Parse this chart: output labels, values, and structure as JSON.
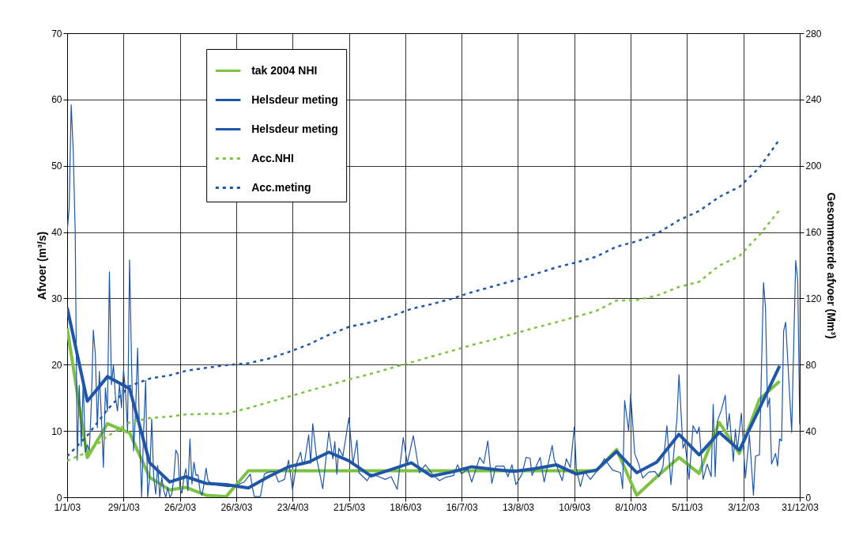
{
  "chart_data": {
    "type": "line",
    "xlabel": null,
    "ylabel": "Afvoer (m³/s)",
    "y2label": "Gesommeerde afvoer (Mm³)",
    "x": [
      "2003-01-01",
      "2003-01-11",
      "2003-01-21",
      "2003-02-01",
      "2003-02-11",
      "2003-02-21",
      "2003-03-01",
      "2003-03-11",
      "2003-03-21",
      "2003-04-01",
      "2003-04-11",
      "2003-04-21",
      "2003-05-01",
      "2003-05-11",
      "2003-05-21",
      "2003-06-01",
      "2003-06-11",
      "2003-06-21",
      "2003-07-01",
      "2003-07-11",
      "2003-07-21",
      "2003-08-01",
      "2003-08-11",
      "2003-08-21",
      "2003-09-01",
      "2003-09-11",
      "2003-09-21",
      "2003-10-01",
      "2003-10-11",
      "2003-10-21",
      "2003-11-01",
      "2003-11-11",
      "2003-11-21",
      "2003-12-01",
      "2003-12-11",
      "2003-12-21"
    ],
    "series": [
      {
        "name": "tak 2004 NHI",
        "color": "#7dc243",
        "values": [
          25.5,
          6,
          11.1,
          9.7,
          3,
          1.1,
          1.5,
          0.3,
          0.1,
          4,
          4,
          4,
          4,
          4,
          4,
          4,
          4,
          4,
          4,
          4,
          4,
          4,
          4,
          4,
          4,
          4,
          4,
          7.2,
          0.3,
          3.1,
          6,
          3.6,
          11.3,
          6.6,
          14.8,
          17.5
        ]
      },
      {
        "name": "Helsdeur meting",
        "color": "#1f56a8",
        "values": [
          28.6,
          14.5,
          18.2,
          16.4,
          5.2,
          2.3,
          3.1,
          2.1,
          1.9,
          1.4,
          3.1,
          4.6,
          5.3,
          6.8,
          5.5,
          3.2,
          4.2,
          5.2,
          3.2,
          3.8,
          4.6,
          4.2,
          3.9,
          4.3,
          4.9,
          3.5,
          4.1,
          6.9,
          3.7,
          5.3,
          9.5,
          6.4,
          9.8,
          7.1,
          13.4,
          19.8
        ]
      },
      {
        "name": "Helsdeur meting",
        "color": "#1f56a8",
        "x": [
          "2003-01-01",
          "2003-01-02",
          "2003-01-03",
          "2003-01-04",
          "2003-01-05",
          "2003-01-06",
          "2003-01-07",
          "2003-01-08",
          "2003-01-09",
          "2003-01-10",
          "2003-01-11",
          "2003-01-12",
          "2003-01-13",
          "2003-01-14",
          "2003-01-15",
          "2003-01-16",
          "2003-01-17",
          "2003-01-18",
          "2003-01-19",
          "2003-01-20",
          "2003-01-21",
          "2003-01-22",
          "2003-01-23",
          "2003-01-24",
          "2003-01-25",
          "2003-01-26",
          "2003-01-27",
          "2003-01-28",
          "2003-01-29",
          "2003-01-30",
          "2003-01-31",
          "2003-02-01",
          "2003-02-02",
          "2003-02-03",
          "2003-02-04",
          "2003-02-05",
          "2003-02-06",
          "2003-02-07",
          "2003-02-08",
          "2003-02-09",
          "2003-02-10",
          "2003-02-11",
          "2003-02-12",
          "2003-02-13",
          "2003-02-14",
          "2003-02-15",
          "2003-02-16",
          "2003-02-17",
          "2003-02-18",
          "2003-02-19",
          "2003-02-20",
          "2003-02-21",
          "2003-02-22",
          "2003-02-23",
          "2003-02-24",
          "2003-02-25",
          "2003-02-26",
          "2003-02-27",
          "2003-02-28",
          "2003-03-01",
          "2003-03-02",
          "2003-03-03",
          "2003-03-04",
          "2003-03-05",
          "2003-03-06",
          "2003-03-07",
          "2003-03-08",
          "2003-03-09",
          "2003-03-10",
          "2003-03-11",
          "2003-03-12",
          "2003-03-14",
          "2003-03-17",
          "2003-03-22",
          "2003-03-27",
          "2003-03-30",
          "2003-04-02",
          "2003-04-03",
          "2003-04-04",
          "2003-04-07",
          "2003-04-09",
          "2003-04-11",
          "2003-04-14",
          "2003-04-16",
          "2003-04-19",
          "2003-04-21",
          "2003-04-23",
          "2003-04-25",
          "2003-04-27",
          "2003-04-28",
          "2003-04-29",
          "2003-05-01",
          "2003-05-02",
          "2003-05-03",
          "2003-05-05",
          "2003-05-08",
          "2003-05-11",
          "2003-05-13",
          "2003-05-14",
          "2003-05-15",
          "2003-05-16",
          "2003-05-18",
          "2003-05-21",
          "2003-05-23",
          "2003-05-25",
          "2003-05-26",
          "2003-05-30",
          "2003-06-01",
          "2003-06-05",
          "2003-06-08",
          "2003-06-11",
          "2003-06-14",
          "2003-06-17",
          "2003-06-19",
          "2003-06-22",
          "2003-06-25",
          "2003-06-28",
          "2003-07-02",
          "2003-07-05",
          "2003-07-08",
          "2003-07-12",
          "2003-07-14",
          "2003-07-16",
          "2003-07-19",
          "2003-07-21",
          "2003-07-25",
          "2003-07-27",
          "2003-07-29",
          "2003-07-31",
          "2003-08-02",
          "2003-08-06",
          "2003-08-08",
          "2003-08-10",
          "2003-08-12",
          "2003-08-15",
          "2003-08-17",
          "2003-08-19",
          "2003-08-20",
          "2003-08-24",
          "2003-08-26",
          "2003-08-30",
          "2003-08-31",
          "2003-09-04",
          "2003-09-06",
          "2003-09-08",
          "2003-09-10",
          "2003-09-11",
          "2003-09-13",
          "2003-09-15",
          "2003-09-18",
          "2003-09-21",
          "2003-09-25",
          "2003-09-29",
          "2003-10-03",
          "2003-10-04",
          "2003-10-05",
          "2003-10-07",
          "2003-10-08",
          "2003-10-10",
          "2003-10-12",
          "2003-10-14",
          "2003-10-17",
          "2003-10-20",
          "2003-10-22",
          "2003-10-24",
          "2003-10-26",
          "2003-10-28",
          "2003-10-31",
          "2003-11-01",
          "2003-11-03",
          "2003-11-04",
          "2003-11-06",
          "2003-11-08",
          "2003-11-10",
          "2003-11-11",
          "2003-11-13",
          "2003-11-15",
          "2003-11-17",
          "2003-11-18",
          "2003-11-19",
          "2003-11-20",
          "2003-11-22",
          "2003-11-24",
          "2003-11-25",
          "2003-11-26",
          "2003-11-28",
          "2003-11-29",
          "2003-11-30",
          "2003-12-02",
          "2003-12-04",
          "2003-12-06",
          "2003-12-08",
          "2003-12-09",
          "2003-12-11",
          "2003-12-13",
          "2003-12-14",
          "2003-12-15",
          "2003-12-16",
          "2003-12-17",
          "2003-12-19",
          "2003-12-20",
          "2003-12-21",
          "2003-12-22",
          "2003-12-23",
          "2003-12-24",
          "2003-12-25",
          "2003-12-27",
          "2003-12-29",
          "2003-12-30",
          "2003-12-31"
        ],
        "values": [
          40,
          43.7,
          59.2,
          52.3,
          40,
          5.6,
          16.9,
          7.7,
          17.5,
          6.8,
          7.9,
          7,
          14,
          25.2,
          21.5,
          10.5,
          19,
          12,
          4.5,
          16.5,
          13,
          34,
          17,
          20,
          15,
          13,
          17,
          13.5,
          19.2,
          16,
          10,
          35.8,
          20,
          7,
          13,
          22.5,
          9,
          0,
          10,
          17.6,
          0,
          3,
          11.8,
          3,
          0.5,
          4.8,
          0,
          3,
          1,
          0,
          1.5,
          0,
          0.5,
          3,
          7.1,
          6.5,
          1.5,
          0.6,
          3,
          4.3,
          1,
          8.8,
          2,
          5.3,
          3.3,
          3.4,
          1,
          0.3,
          2,
          4.4,
          2.5,
          2,
          1.8,
          1.6,
          1.9,
          2.3,
          3.5,
          1.5,
          0.1,
          0.1,
          3.5,
          3.8,
          3.9,
          2.3,
          2.7,
          5.6,
          1.1,
          5.1,
          6.8,
          4.9,
          5.4,
          9.4,
          5.1,
          11.1,
          5.8,
          1.3,
          9.9,
          5.8,
          8.4,
          3.5,
          7.4,
          6.2,
          12,
          5.1,
          8.6,
          3.7,
          2.5,
          3.5,
          3.1,
          2.7,
          3.1,
          1.2,
          9,
          5.1,
          9.3,
          3.7,
          4.9,
          3.3,
          2.5,
          3,
          3.3,
          4.9,
          3.5,
          4.3,
          2.3,
          6,
          5.1,
          8.5,
          2.1,
          4.7,
          4.7,
          3.1,
          4.9,
          1.9,
          3.5,
          6,
          5.9,
          3.3,
          6,
          2.3,
          7.8,
          5.7,
          2.5,
          5.8,
          4.5,
          10.6,
          4.3,
          1.6,
          3.9,
          2.7,
          3.9,
          5.8,
          4.1,
          3.7,
          1.3,
          14.6,
          10,
          15.6,
          6.6,
          5,
          2.9,
          3.8,
          3.9,
          3.1,
          4.6,
          10.8,
          1.9,
          11.9,
          18.5,
          7.4,
          8.2,
          2.7,
          10.8,
          9.6,
          10.6,
          2.7,
          5,
          3.1,
          14,
          3.1,
          11.4,
          13.1,
          15.4,
          10.2,
          12.6,
          5.4,
          10.2,
          7.2,
          12.7,
          2.9,
          9.4,
          0.3,
          6.2,
          6.4,
          32.4,
          28.5,
          13.6,
          15,
          5,
          6.6,
          4.7,
          8.8,
          8.5,
          25.1,
          26.4,
          20.9,
          9.8,
          35.7,
          32.8,
          11
        ]
      },
      {
        "name": "Acc.NHI",
        "color": "#7dc243",
        "line_style": "dashed",
        "axis": "y2",
        "values": [
          22.0,
          27.2,
          36.8,
          45.2,
          47.8,
          48.7,
          50.0,
          50.3,
          50.4,
          53.8,
          57.3,
          60.7,
          64.2,
          67.6,
          71.1,
          74.5,
          78.0,
          81.4,
          84.9,
          88.3,
          91.8,
          95.2,
          98.7,
          102.1,
          105.6,
          109.0,
          112.5,
          118.7,
          119.0,
          121.7,
          126.9,
          130.0,
          139.8,
          145.5,
          158.3,
          173.4
        ]
      },
      {
        "name": "Acc.meting",
        "color": "#1f56a8",
        "line_style": "dashed",
        "axis": "y2",
        "values": [
          24.7,
          37.2,
          52.9,
          67.1,
          71.6,
          73.6,
          76.3,
          78.1,
          79.7,
          80.9,
          83.6,
          87.6,
          92.2,
          98.0,
          102.8,
          105.6,
          109.2,
          113.7,
          116.5,
          119.8,
          123.7,
          127.4,
          130.8,
          134.5,
          138.7,
          141.7,
          145.2,
          151.2,
          154.4,
          159.0,
          167.2,
          172.7,
          181.2,
          187.3,
          198.9,
          216.0
        ]
      }
    ],
    "xlim": [
      "2003-01-01",
      "2003-12-31"
    ],
    "xticks": [
      {
        "value": "2003-01-01",
        "label": "1/1/03"
      },
      {
        "value": "2003-01-29",
        "label": "29/1/03"
      },
      {
        "value": "2003-02-26",
        "label": "26/2/03"
      },
      {
        "value": "2003-03-26",
        "label": "26/3/03"
      },
      {
        "value": "2003-04-23",
        "label": "23/4/03"
      },
      {
        "value": "2003-05-21",
        "label": "21/5/03"
      },
      {
        "value": "2003-06-18",
        "label": "18/6/03"
      },
      {
        "value": "2003-07-16",
        "label": "16/7/03"
      },
      {
        "value": "2003-08-13",
        "label": "13/8/03"
      },
      {
        "value": "2003-09-10",
        "label": "10/9/03"
      },
      {
        "value": "2003-10-08",
        "label": "8/10/03"
      },
      {
        "value": "2003-11-05",
        "label": "5/11/03"
      },
      {
        "value": "2003-12-03",
        "label": "3/12/03"
      },
      {
        "value": "2003-12-31",
        "label": "31/12/03"
      }
    ],
    "ylim": [
      0,
      70
    ],
    "yticks": [
      0,
      10,
      20,
      30,
      40,
      50,
      60,
      70
    ],
    "y2lim": [
      0,
      280
    ],
    "y2ticks": [
      0,
      40,
      80,
      120,
      160,
      200,
      240,
      280
    ],
    "grid": true,
    "legend": "top left"
  }
}
